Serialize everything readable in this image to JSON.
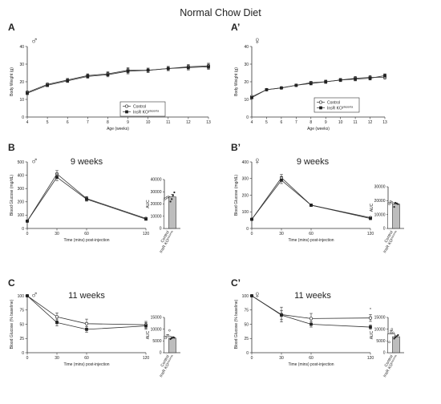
{
  "title": "Normal Chow Diet",
  "legend": [
    "Control",
    "InsR KO"
  ],
  "legend_sup": "placenta",
  "colors": {
    "control": "#ffffff",
    "ko": "#222222",
    "line": "#333333"
  },
  "chart_data": [
    {
      "id": "A",
      "panel_label": "A",
      "sex_symbol": "♂",
      "sex_icon": "male-symbol-icon",
      "type": "line",
      "title": "",
      "xlabel": "Age (weeks)",
      "ylabel": "Body Weight (g)",
      "x": [
        4,
        5,
        6,
        7,
        8,
        9,
        10,
        11,
        12,
        13
      ],
      "xticks": [
        4,
        5,
        6,
        7,
        8,
        9,
        10,
        11,
        12,
        13
      ],
      "ylim": [
        0,
        40
      ],
      "yticks": [
        0,
        10,
        20,
        30,
        40
      ],
      "series": [
        {
          "name": "Control",
          "values": [
            14.0,
            18.5,
            21.0,
            23.5,
            24.5,
            26.5,
            26.5,
            27.5,
            28.5,
            29.0
          ],
          "err": [
            0.8,
            0.8,
            0.9,
            1.0,
            1.2,
            1.5,
            1.2,
            1.2,
            1.3,
            1.5
          ]
        },
        {
          "name": "InsR KO",
          "values": [
            13.5,
            18.0,
            20.5,
            23.0,
            24.0,
            26.0,
            26.5,
            27.5,
            28.0,
            28.5
          ],
          "err": [
            0.8,
            0.8,
            0.9,
            1.0,
            1.2,
            1.5,
            1.2,
            1.2,
            1.3,
            1.5
          ]
        }
      ]
    },
    {
      "id": "A2",
      "panel_label": "A’",
      "sex_symbol": "♀",
      "sex_icon": "female-symbol-icon",
      "type": "line",
      "title": "",
      "xlabel": "Age (weeks)",
      "ylabel": "Body Weight (g)",
      "x": [
        4,
        5,
        6,
        7,
        8,
        9,
        10,
        11,
        12,
        13
      ],
      "xticks": [
        4,
        5,
        6,
        7,
        8,
        9,
        10,
        11,
        12,
        13
      ],
      "ylim": [
        0,
        40
      ],
      "yticks": [
        0,
        10,
        20,
        30,
        40
      ],
      "series": [
        {
          "name": "Control",
          "values": [
            11.5,
            15.5,
            16.5,
            18.0,
            19.5,
            20.0,
            21.0,
            22.0,
            22.5,
            22.5
          ],
          "err": [
            0.5,
            0.6,
            0.6,
            0.7,
            0.8,
            0.9,
            0.9,
            1.0,
            1.0,
            1.0
          ]
        },
        {
          "name": "InsR KO",
          "values": [
            11.0,
            15.5,
            16.5,
            18.0,
            19.0,
            20.0,
            21.0,
            21.5,
            22.0,
            23.5
          ],
          "err": [
            0.5,
            0.6,
            0.6,
            0.7,
            0.8,
            0.9,
            0.9,
            1.0,
            1.0,
            1.0
          ]
        }
      ]
    },
    {
      "id": "B",
      "panel_label": "B",
      "sex_symbol": "♂",
      "sex_icon": "male-symbol-icon",
      "type": "line",
      "title": "9 weeks",
      "xlabel": "Time (mins) post-injection",
      "ylabel": "Blood Glucose (mg/dL)",
      "x": [
        0,
        30,
        60,
        120
      ],
      "xticks": [
        0,
        30,
        60,
        120
      ],
      "ylim": [
        0,
        500
      ],
      "yticks": [
        0,
        100,
        200,
        300,
        400,
        500
      ],
      "series": [
        {
          "name": "Control",
          "values": [
            55,
            410,
            225,
            75
          ],
          "err": [
            5,
            25,
            15,
            8
          ]
        },
        {
          "name": "InsR KO",
          "values": [
            55,
            385,
            220,
            70
          ],
          "err": [
            5,
            25,
            15,
            8
          ]
        }
      ],
      "auc": {
        "ylabel": "AUC",
        "ylim": [
          0,
          40000
        ],
        "yticks": [
          0,
          10000,
          20000,
          30000,
          40000
        ],
        "categories": [
          "Control",
          "InsR KO"
        ],
        "values": [
          25000,
          25800
        ],
        "err": [
          900,
          2200
        ],
        "points": [
          [
            23500,
            24500,
            25200,
            26000,
            25500,
            24800
          ],
          [
            22000,
            24000,
            27000,
            29500
          ]
        ]
      }
    },
    {
      "id": "B2",
      "panel_label": "B’",
      "sex_symbol": "♀",
      "sex_icon": "female-symbol-icon",
      "type": "line",
      "title": "9 weeks",
      "xlabel": "Time (mins) post-injection",
      "ylabel": "Blood Glucose (mg/dL)",
      "x": [
        0,
        30,
        60,
        120
      ],
      "xticks": [
        0,
        30,
        60,
        120
      ],
      "ylim": [
        0,
        400
      ],
      "yticks": [
        0,
        100,
        200,
        300,
        400
      ],
      "series": [
        {
          "name": "Control",
          "values": [
            55,
            305,
            140,
            65
          ],
          "err": [
            5,
            20,
            8,
            6
          ]
        },
        {
          "name": "InsR KO",
          "values": [
            55,
            290,
            140,
            60
          ],
          "err": [
            5,
            20,
            8,
            6
          ]
        }
      ],
      "auc": {
        "ylabel": "AUC",
        "ylim": [
          0,
          30000
        ],
        "yticks": [
          0,
          10000,
          20000,
          30000
        ],
        "categories": [
          "Control",
          "InsR KO"
        ],
        "values": [
          18500,
          17500
        ],
        "err": [
          700,
          900
        ],
        "points": [
          [
            17500,
            19500,
            18500,
            18000
          ],
          [
            15500,
            18500,
            18000,
            17500
          ]
        ]
      }
    },
    {
      "id": "C",
      "panel_label": "C",
      "sex_symbol": "♂",
      "sex_icon": "male-symbol-icon",
      "type": "line",
      "title": "11 weeks",
      "xlabel": "Time (mins) post-injection",
      "ylabel": "Blood Glucose (% baseline)",
      "x": [
        0,
        30,
        60,
        120
      ],
      "xticks": [
        0,
        30,
        60,
        120
      ],
      "ylim": [
        0,
        100
      ],
      "yticks": [
        0,
        25,
        50,
        75,
        100
      ],
      "series": [
        {
          "name": "Control",
          "values": [
            100,
            63,
            51,
            49
          ],
          "err": [
            0,
            7,
            8,
            6
          ]
        },
        {
          "name": "InsR KO",
          "values": [
            100,
            53,
            41,
            47
          ],
          "err": [
            0,
            6,
            5,
            6
          ]
        }
      ],
      "auc": {
        "ylabel": "AUC",
        "ylim": [
          0,
          15000
        ],
        "yticks": [
          0,
          5000,
          10000,
          15000
        ],
        "categories": [
          "Control",
          "InsR KO"
        ],
        "values": [
          7000,
          6200
        ],
        "err": [
          700,
          350
        ],
        "points": [
          [
            6200,
            6800,
            7200,
            9500
          ],
          [
            5800,
            6200,
            6600,
            6400
          ]
        ]
      }
    },
    {
      "id": "C2",
      "panel_label": "C’",
      "sex_symbol": "♀",
      "sex_icon": "female-symbol-icon",
      "type": "line",
      "title": "11 weeks",
      "xlabel": "Time (mins) post-injection",
      "ylabel": "Blood Glucose (% baseline)",
      "x": [
        0,
        30,
        60,
        120
      ],
      "xticks": [
        0,
        30,
        60,
        120
      ],
      "ylim": [
        0,
        100
      ],
      "yticks": [
        0,
        25,
        50,
        75,
        100
      ],
      "annotation": "*",
      "series": [
        {
          "name": "Control",
          "values": [
            100,
            67,
            60,
            61
          ],
          "err": [
            0,
            13,
            9,
            6
          ]
        },
        {
          "name": "InsR KO",
          "values": [
            100,
            66,
            50,
            45
          ],
          "err": [
            0,
            8,
            5,
            4
          ]
        }
      ],
      "auc": {
        "ylabel": "AUC",
        "ylim": [
          0,
          15000
        ],
        "yticks": [
          0,
          5000,
          10000,
          15000
        ],
        "categories": [
          "Control",
          "InsR KO"
        ],
        "values": [
          8000,
          6800
        ],
        "err": [
          1400,
          400
        ],
        "points": [
          [
            4500,
            8500,
            10000,
            8500
          ],
          [
            6000,
            6500,
            7000,
            7500
          ]
        ]
      }
    }
  ]
}
